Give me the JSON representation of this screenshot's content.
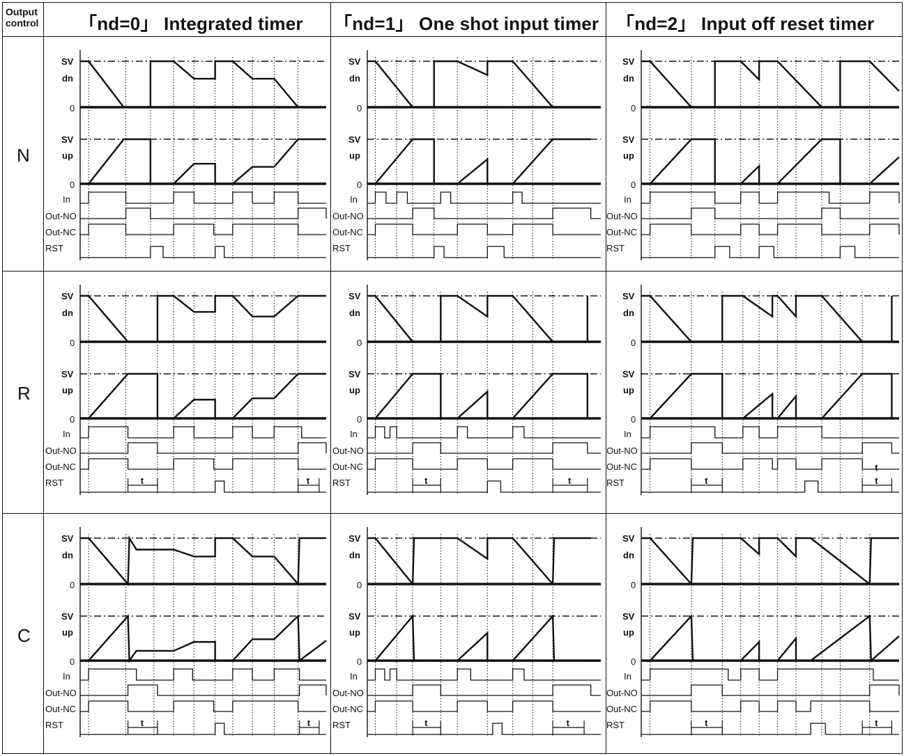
{
  "header": {
    "corner_line1": "Output",
    "corner_line2": "control",
    "columns": [
      {
        "label": "「nd=0」 Integrated timer"
      },
      {
        "label": "「nd=1」 One shot input  timer"
      },
      {
        "label": "「nd=2」 Input  off  reset  timer"
      }
    ]
  },
  "rows": [
    {
      "label": "N"
    },
    {
      "label": "R"
    },
    {
      "label": "C"
    }
  ],
  "signal_labels": {
    "sv": "SV",
    "dn": "dn",
    "up": "up",
    "zero": "0",
    "in": "In",
    "out_no": "Out-NO",
    "out_nc": "Out-NC",
    "rst": "RST",
    "t": "t"
  },
  "colors": {
    "line": "#111111",
    "grid": "#555555",
    "background": "#ffffff"
  }
}
